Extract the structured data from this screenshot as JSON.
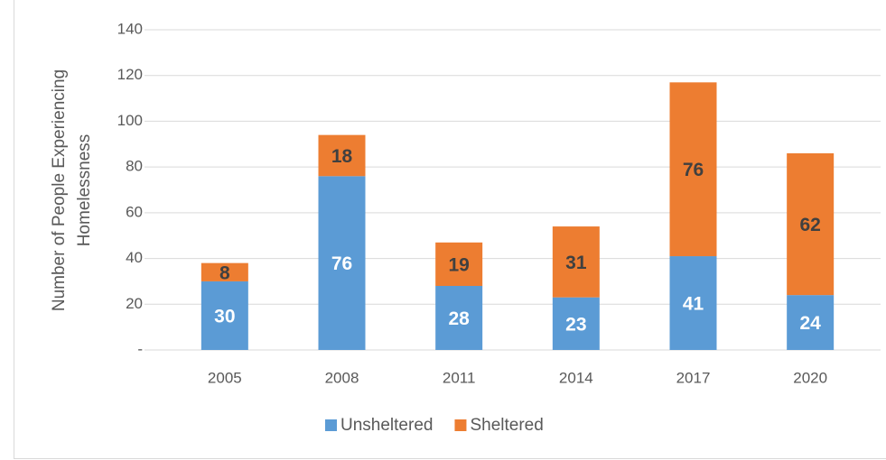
{
  "chart_data": {
    "type": "stacked_bar",
    "y_label": [
      "Number of People Experiencing",
      "Homelessness"
    ],
    "categories": [
      "2005",
      "2008",
      "2011",
      "2014",
      "2017",
      "2020"
    ],
    "series": [
      {
        "name": "Unsheltered",
        "color": "#5b9bd5",
        "values": [
          30,
          76,
          28,
          23,
          41,
          24
        ]
      },
      {
        "name": "Sheltered",
        "color": "#ed7d31",
        "values": [
          8,
          18,
          19,
          31,
          76,
          62
        ]
      }
    ],
    "ylim": [
      0,
      140
    ],
    "yticks": [
      {
        "value": 0,
        "label": "-"
      },
      20,
      40,
      60,
      80,
      100,
      120,
      140
    ],
    "grid": true,
    "legend": "bottom"
  }
}
